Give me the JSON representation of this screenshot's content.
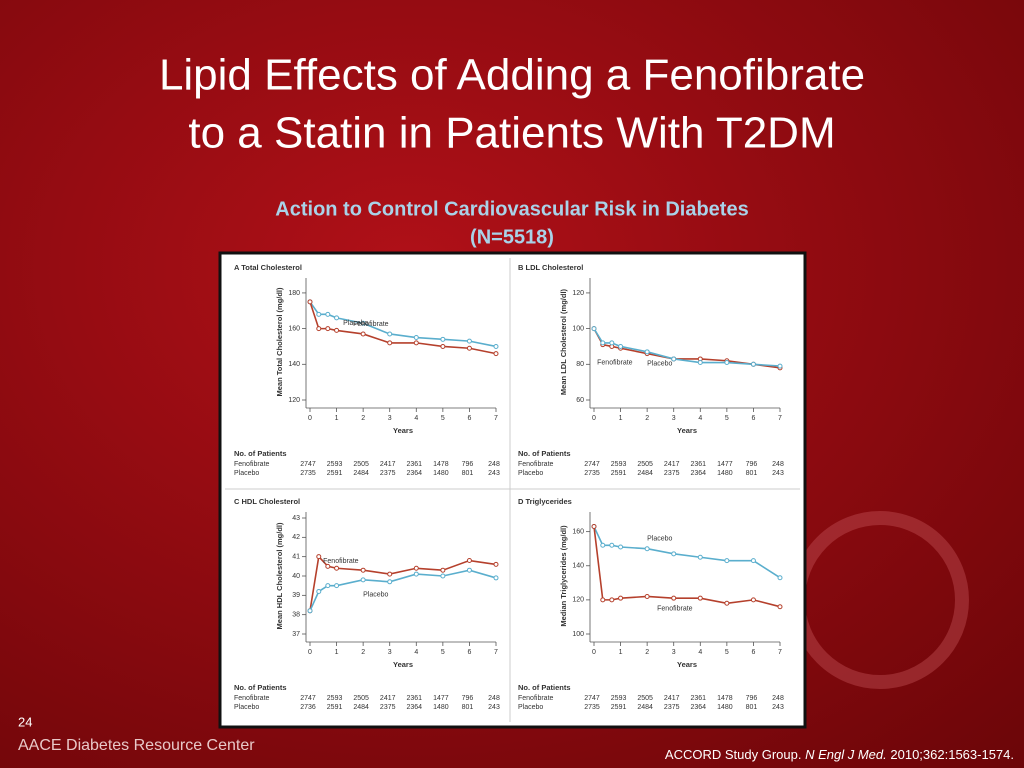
{
  "slide": {
    "title_lines": [
      "Lipid Effects of Adding a Fenofibrate",
      "to a Statin in Patients With T2DM"
    ],
    "subtitle_lines": [
      "Action to Control Cardiovascular Risk in Diabetes",
      "(N=5518)"
    ],
    "page_number": "24",
    "footer": "AACE Diabetes Resource Center",
    "citation": {
      "authors": "ACCORD Study Group.",
      "journal": "N Engl J Med.",
      "details": "2010;362:1563-1574."
    }
  },
  "chart_data": [
    {
      "type": "line",
      "panel": "A",
      "title": "Total Cholesterol",
      "y_label": "Mean Total Cholesterol (mg/dl)",
      "x_label": "Years",
      "x": [
        0,
        0.33,
        0.67,
        1,
        2,
        3,
        4,
        5,
        6,
        7
      ],
      "xlim": [
        0,
        7
      ],
      "xticks": [
        0,
        1,
        2,
        3,
        4,
        5,
        6,
        7
      ],
      "ylim": [
        120,
        185
      ],
      "yticks": [
        120,
        140,
        160,
        180
      ],
      "series": [
        {
          "name": "Placebo",
          "color": "#5aaecd",
          "values": [
            175,
            168,
            168,
            166,
            163,
            157,
            155,
            154,
            153,
            150
          ]
        },
        {
          "name": "Fenofibrate",
          "color": "#b5402c",
          "values": [
            175,
            160,
            160,
            159,
            157,
            152,
            152,
            150,
            149,
            146
          ]
        }
      ],
      "patients": {
        "title": "No. of Patients",
        "rows": [
          {
            "name": "Fenofibrate",
            "values": [
              "2747",
              "2593",
              "2505",
              "2417",
              "2361",
              "1478",
              "796",
              "248"
            ]
          },
          {
            "name": "Placebo",
            "values": [
              "2735",
              "2591",
              "2484",
              "2375",
              "2364",
              "1480",
              "801",
              "243"
            ]
          }
        ]
      }
    },
    {
      "type": "line",
      "panel": "B",
      "title": "LDL Cholesterol",
      "y_label": "Mean LDL Cholesterol (mg/dl)",
      "x_label": "Years",
      "x": [
        0,
        0.33,
        0.67,
        1,
        2,
        3,
        4,
        5,
        6,
        7
      ],
      "xlim": [
        0,
        7
      ],
      "xticks": [
        0,
        1,
        2,
        3,
        4,
        5,
        6,
        7
      ],
      "ylim": [
        60,
        125
      ],
      "yticks": [
        60,
        80,
        100,
        120
      ],
      "series": [
        {
          "name": "Fenofibrate",
          "color": "#b5402c",
          "values": [
            100,
            91,
            90,
            89,
            86,
            83,
            83,
            82,
            80,
            78
          ]
        },
        {
          "name": "Placebo",
          "color": "#5aaecd",
          "values": [
            100,
            92,
            92,
            90,
            87,
            83,
            81,
            81,
            80,
            79
          ]
        }
      ],
      "patients": {
        "title": "No. of Patients",
        "rows": [
          {
            "name": "Fenofibrate",
            "values": [
              "2747",
              "2593",
              "2505",
              "2417",
              "2361",
              "1477",
              "796",
              "248"
            ]
          },
          {
            "name": "Placebo",
            "values": [
              "2735",
              "2591",
              "2484",
              "2375",
              "2364",
              "1480",
              "801",
              "243"
            ]
          }
        ]
      }
    },
    {
      "type": "line",
      "panel": "C",
      "title": "HDL Cholesterol",
      "y_label": "Mean HDL Cholesterol (mg/dl)",
      "x_label": "Years",
      "x": [
        0,
        0.33,
        0.67,
        1,
        2,
        3,
        4,
        5,
        6,
        7
      ],
      "xlim": [
        0,
        7
      ],
      "xticks": [
        0,
        1,
        2,
        3,
        4,
        5,
        6,
        7
      ],
      "ylim": [
        37,
        43
      ],
      "yticks": [
        37,
        38,
        39,
        40,
        41,
        42,
        43
      ],
      "series": [
        {
          "name": "Fenofibrate",
          "color": "#b5402c",
          "values": [
            38.2,
            41,
            40.5,
            40.4,
            40.3,
            40.1,
            40.4,
            40.3,
            40.8,
            40.6
          ]
        },
        {
          "name": "Placebo",
          "color": "#5aaecd",
          "values": [
            38.2,
            39.2,
            39.5,
            39.5,
            39.8,
            39.7,
            40.1,
            40,
            40.3,
            39.9
          ]
        }
      ],
      "patients": {
        "title": "No. of Patients",
        "rows": [
          {
            "name": "Fenofibrate",
            "values": [
              "2747",
              "2593",
              "2505",
              "2417",
              "2361",
              "1477",
              "796",
              "248"
            ]
          },
          {
            "name": "Placebo",
            "values": [
              "2736",
              "2591",
              "2484",
              "2375",
              "2364",
              "1480",
              "801",
              "243"
            ]
          }
        ]
      }
    },
    {
      "type": "line",
      "panel": "D",
      "title": "Triglycerides",
      "y_label": "Median Triglycerides (mg/dl)",
      "x_label": "Years",
      "x": [
        0,
        0.33,
        0.67,
        1,
        2,
        3,
        4,
        5,
        6,
        7
      ],
      "xlim": [
        0,
        7
      ],
      "xticks": [
        0,
        1,
        2,
        3,
        4,
        5,
        6,
        7
      ],
      "ylim": [
        100,
        168
      ],
      "yticks": [
        100,
        120,
        140,
        160
      ],
      "series": [
        {
          "name": "Placebo",
          "color": "#5aaecd",
          "values": [
            163,
            152,
            152,
            151,
            150,
            147,
            145,
            143,
            143,
            133
          ]
        },
        {
          "name": "Fenofibrate",
          "color": "#b5402c",
          "values": [
            163,
            120,
            120,
            121,
            122,
            121,
            121,
            118,
            120,
            116
          ]
        }
      ],
      "patients": {
        "title": "No. of Patients",
        "rows": [
          {
            "name": "Fenofibrate",
            "values": [
              "2747",
              "2593",
              "2505",
              "2417",
              "2361",
              "1478",
              "796",
              "248"
            ]
          },
          {
            "name": "Placebo",
            "values": [
              "2735",
              "2591",
              "2484",
              "2375",
              "2364",
              "1480",
              "801",
              "243"
            ]
          }
        ]
      }
    }
  ]
}
